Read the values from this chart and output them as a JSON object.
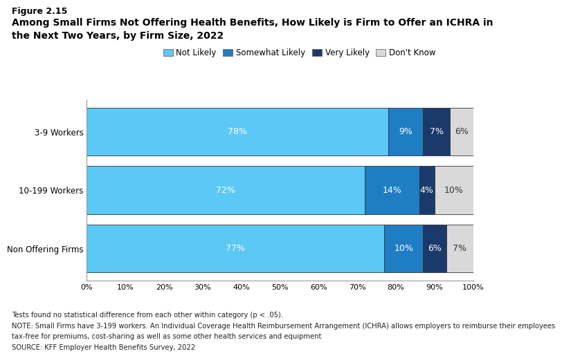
{
  "title_line1": "Figure 2.15",
  "title_line2": "Among Small Firms Not Offering Health Benefits, How Likely is Firm to Offer an ICHRA in",
  "title_line3": "the Next Two Years, by Firm Size, 2022",
  "categories": [
    "3-9 Workers",
    "10-199 Workers",
    "Non Offering Firms"
  ],
  "series": {
    "Not Likely": [
      78,
      72,
      77
    ],
    "Somewhat Likely": [
      9,
      14,
      10
    ],
    "Very Likely": [
      7,
      4,
      6
    ],
    "Don't Know": [
      6,
      10,
      7
    ]
  },
  "colors": {
    "Not Likely": "#5BC8F5",
    "Somewhat Likely": "#1F7DC4",
    "Very Likely": "#1A3A6B",
    "Don't Know": "#D9D9D9"
  },
  "legend_order": [
    "Not Likely",
    "Somewhat Likely",
    "Very Likely",
    "Don't Know"
  ],
  "xlim": [
    0,
    100
  ],
  "xticks": [
    0,
    10,
    20,
    30,
    40,
    50,
    60,
    70,
    80,
    90,
    100
  ],
  "xtick_labels": [
    "0%",
    "10%",
    "20%",
    "30%",
    "40%",
    "50%",
    "60%",
    "70%",
    "80%",
    "90%",
    "100%"
  ],
  "bar_height": 0.82,
  "footnote_lines": [
    "Tests found no statistical difference from each other within category (p < .05).",
    "NOTE: Small Firms have 3-199 workers. An Individual Coverage Health Reimbursement Arrangement (ICHRA) allows employers to reimburse their employees",
    "tax-free for premiums, cost-sharing as well as some other health services and equipment",
    "SOURCE: KFF Employer Health Benefits Survey, 2022"
  ],
  "label_fontsize": 8.5,
  "tick_fontsize": 8,
  "footnote_fontsize": 7.2,
  "title_fontsize_1": 9,
  "title_fontsize_2": 10,
  "legend_fontsize": 8.5,
  "bar_text_fontsize": 9,
  "background_color": "#FFFFFF"
}
